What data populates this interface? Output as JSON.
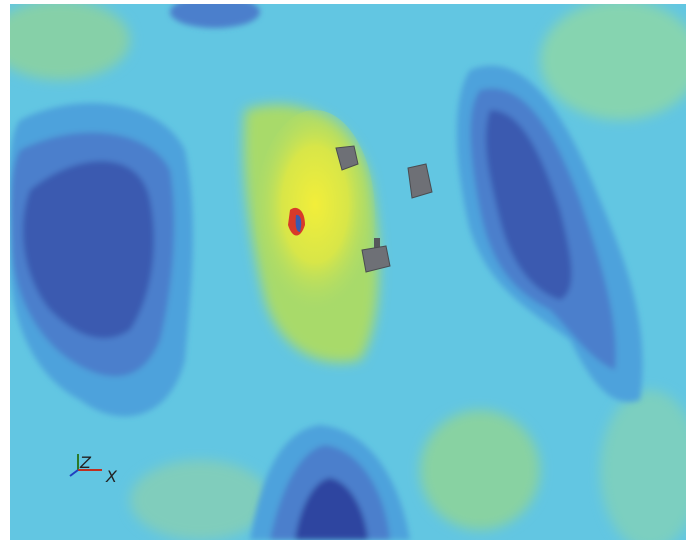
{
  "axes": {
    "z": "Z",
    "x": "X"
  }
}
